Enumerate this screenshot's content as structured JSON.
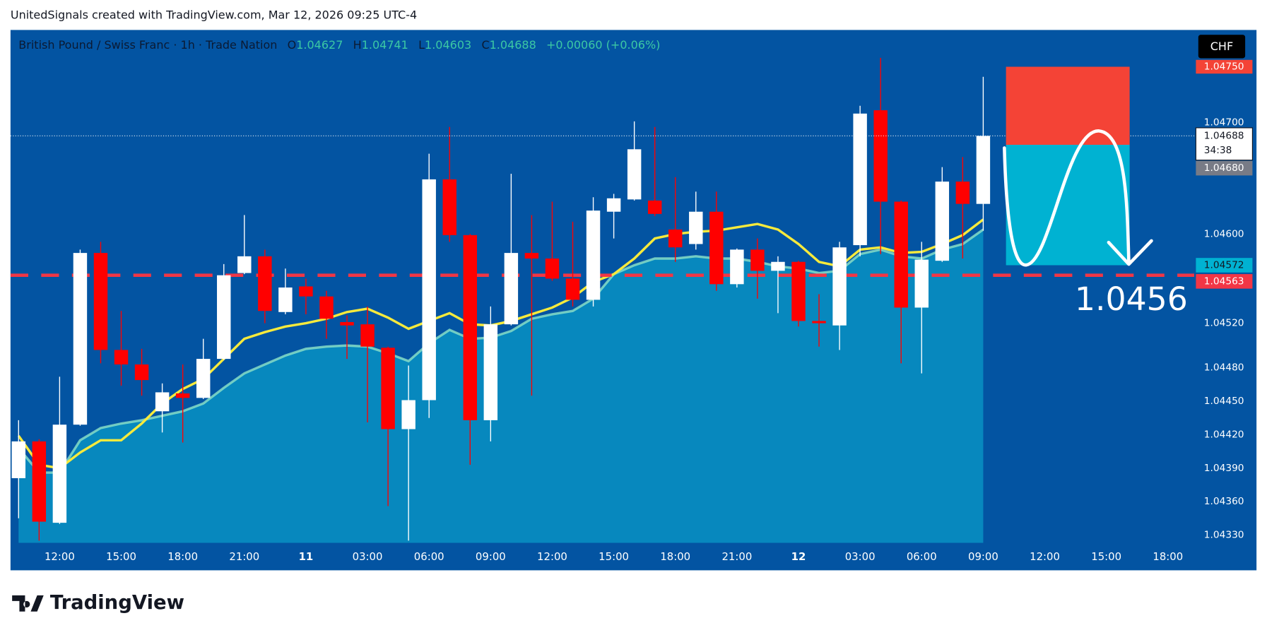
{
  "header": "UnitedSignals created with TradingView.com, Mar 12, 2026 09:25 UTC-4",
  "footer": {
    "brand": "TradingView"
  },
  "chart_data": {
    "type": "candlestick",
    "currency": "CHF",
    "legend": {
      "symbol": "British Pound / Swiss Franc · 1h · Trade Nation",
      "letters": [
        "O",
        "H",
        "L",
        "C"
      ],
      "change": "+0.00060 (+0.06%)"
    },
    "categories": [
      null,
      null,
      "12:00",
      null,
      null,
      "15:00",
      null,
      null,
      "18:00",
      null,
      null,
      "21:00",
      null,
      null,
      "11",
      null,
      null,
      "03:00",
      null,
      null,
      "06:00",
      null,
      null,
      "09:00",
      null,
      null,
      "12:00",
      null,
      null,
      "15:00",
      null,
      null,
      "18:00",
      null,
      null,
      "21:00",
      null,
      null,
      "12",
      null,
      null,
      "03:00",
      null,
      null,
      "06:00",
      null,
      null,
      "09:00"
    ],
    "future_times": [
      "12:00",
      "15:00",
      "18:00"
    ],
    "ohlc": {
      "open": [
        1.04381,
        1.04414,
        1.04341,
        1.04429,
        1.04583,
        1.04496,
        1.04483,
        1.04441,
        1.04457,
        1.04453,
        1.04488,
        1.04565,
        1.0458,
        1.0453,
        1.04553,
        1.04544,
        1.04521,
        1.04519,
        1.04498,
        1.04425,
        1.04451,
        1.04649,
        1.04599,
        1.04433,
        1.04519,
        1.04583,
        1.04578,
        1.0456,
        1.04541,
        1.0462,
        1.04631,
        1.0463,
        1.04604,
        1.04591,
        1.0462,
        1.04555,
        1.04586,
        1.04567,
        1.04575,
        1.04522,
        1.04518,
        1.0459,
        1.04711,
        1.04629,
        1.04534,
        1.04576,
        1.04647,
        1.04627
      ],
      "high": [
        1.04433,
        1.04416,
        1.04472,
        1.04586,
        1.04593,
        1.04531,
        1.04497,
        1.04466,
        1.04483,
        1.04506,
        1.04573,
        1.04617,
        1.04586,
        1.04569,
        1.0456,
        1.04549,
        1.04527,
        1.04535,
        1.04499,
        1.04482,
        1.04672,
        1.04696,
        1.046,
        1.04535,
        1.04654,
        1.04617,
        1.04629,
        1.04611,
        1.04633,
        1.04636,
        1.04701,
        1.04696,
        1.04651,
        1.04638,
        1.04638,
        1.04587,
        1.04596,
        1.0458,
        1.04576,
        1.04546,
        1.04593,
        1.04715,
        1.04758,
        1.0463,
        1.04593,
        1.0466,
        1.04669,
        1.04741
      ],
      "low": [
        1.04345,
        1.04325,
        1.0434,
        1.04428,
        1.04484,
        1.04464,
        1.04455,
        1.04422,
        1.04413,
        1.04452,
        1.04487,
        1.04564,
        1.0452,
        1.04528,
        1.04528,
        1.04506,
        1.04488,
        1.04431,
        1.04356,
        1.04325,
        1.04435,
        1.04593,
        1.04393,
        1.04414,
        1.04518,
        1.04455,
        1.04558,
        1.04535,
        1.04535,
        1.04596,
        1.0463,
        1.04616,
        1.04575,
        1.04586,
        1.04549,
        1.04552,
        1.04542,
        1.04529,
        1.04517,
        1.04499,
        1.04496,
        1.0458,
        1.04582,
        1.04484,
        1.04475,
        1.04575,
        1.04578,
        1.04603
      ],
      "close": [
        1.04414,
        1.04342,
        1.04429,
        1.04583,
        1.04496,
        1.04483,
        1.04469,
        1.04458,
        1.04453,
        1.04488,
        1.04563,
        1.0458,
        1.04531,
        1.04552,
        1.04544,
        1.04524,
        1.04518,
        1.04499,
        1.04425,
        1.04451,
        1.04649,
        1.04599,
        1.04433,
        1.04519,
        1.04583,
        1.04578,
        1.0456,
        1.04541,
        1.04621,
        1.04632,
        1.04676,
        1.04618,
        1.04588,
        1.0462,
        1.04555,
        1.04586,
        1.04567,
        1.04575,
        1.04522,
        1.0452,
        1.04588,
        1.04708,
        1.04629,
        1.04534,
        1.04577,
        1.04647,
        1.04627,
        1.04688
      ]
    },
    "up_color": "#ffffff",
    "down_color": "#ff0000",
    "series": [
      {
        "type": "area",
        "color": "#0788be",
        "line_color": "#8fe3c8",
        "values": [
          1.04408,
          1.04386,
          1.04386,
          1.04415,
          1.04426,
          1.0443,
          1.04433,
          1.04437,
          1.04441,
          1.04448,
          1.04462,
          1.04475,
          1.04483,
          1.04491,
          1.04497,
          1.04499,
          1.045,
          1.04499,
          1.04493,
          1.04486,
          1.04502,
          1.04514,
          1.04506,
          1.04507,
          1.04513,
          1.04524,
          1.04528,
          1.04531,
          1.04542,
          1.04564,
          1.04572,
          1.04578,
          1.04578,
          1.0458,
          1.04578,
          1.04578,
          1.04575,
          1.04571,
          1.04569,
          1.04565,
          1.04567,
          1.04582,
          1.04586,
          1.0458,
          1.04578,
          1.04586,
          1.04591,
          1.04604
        ]
      },
      {
        "type": "line",
        "color": "#f7ea3c",
        "values": [
          1.04419,
          1.04393,
          1.0439,
          1.04404,
          1.04415,
          1.04415,
          1.0443,
          1.04448,
          1.04461,
          1.0447,
          1.04488,
          1.04506,
          1.04512,
          1.04517,
          1.0452,
          1.04524,
          1.0453,
          1.04533,
          1.04525,
          1.04515,
          1.04522,
          1.04529,
          1.04519,
          1.04518,
          1.04522,
          1.04528,
          1.04534,
          1.04543,
          1.04557,
          1.04564,
          1.04578,
          1.04596,
          1.046,
          1.04602,
          1.04603,
          1.04606,
          1.04609,
          1.04604,
          1.04591,
          1.04575,
          1.04571,
          1.04586,
          1.04588,
          1.04583,
          1.04584,
          1.04591,
          1.04599,
          1.04613
        ]
      }
    ],
    "ylim": [
      1.04323,
      1.04783
    ],
    "yticks": [
      {
        "value": 1.0433,
        "label": "1.04330"
      },
      {
        "value": 1.0436,
        "label": "1.04360"
      },
      {
        "value": 1.0439,
        "label": "1.04390"
      },
      {
        "value": 1.0442,
        "label": "1.04420"
      },
      {
        "value": 1.0445,
        "label": "1.04450"
      },
      {
        "value": 1.0448,
        "label": "1.04480"
      },
      {
        "value": 1.0452,
        "label": "1.04520"
      },
      {
        "value": 1.046,
        "label": "1.04600"
      },
      {
        "value": 1.047,
        "label": "1.04700"
      }
    ],
    "grid": false,
    "countdown": "34:38",
    "position": {
      "stop": {
        "value": 1.0475,
        "label": "1.04750",
        "color": "#f44336"
      },
      "entry": {
        "value": 1.0468,
        "label": "1.04680",
        "color": "#787b86"
      },
      "target": {
        "value": 1.04572,
        "label": "1.04572",
        "color": "#00b2d2"
      }
    },
    "level_line": {
      "value": 1.04563,
      "label": "1.04563",
      "color": "#f23645"
    },
    "annotation": "1.0456"
  }
}
